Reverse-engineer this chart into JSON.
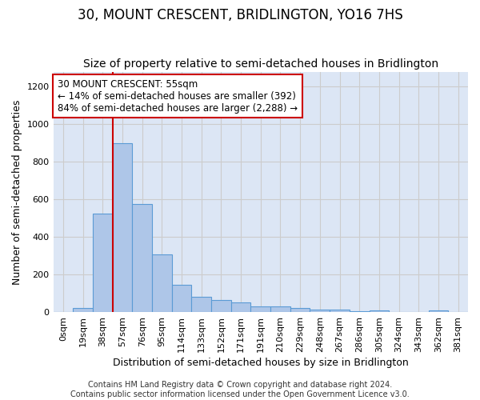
{
  "title": "30, MOUNT CRESCENT, BRIDLINGTON, YO16 7HS",
  "subtitle": "Size of property relative to semi-detached houses in Bridlington",
  "xlabel": "Distribution of semi-detached houses by size in Bridlington",
  "ylabel": "Number of semi-detached properties",
  "categories": [
    "0sqm",
    "19sqm",
    "38sqm",
    "57sqm",
    "76sqm",
    "95sqm",
    "114sqm",
    "133sqm",
    "152sqm",
    "171sqm",
    "191sqm",
    "210sqm",
    "229sqm",
    "248sqm",
    "267sqm",
    "286sqm",
    "305sqm",
    "324sqm",
    "343sqm",
    "362sqm",
    "381sqm"
  ],
  "values": [
    0,
    20,
    525,
    900,
    575,
    305,
    147,
    80,
    65,
    50,
    30,
    30,
    20,
    12,
    15,
    5,
    10,
    0,
    0,
    10,
    0
  ],
  "bar_color": "#aec6e8",
  "bar_edge_color": "#5b9bd5",
  "bar_width": 1.0,
  "property_line_x": 2.5,
  "annotation_text": "30 MOUNT CRESCENT: 55sqm\n← 14% of semi-detached houses are smaller (392)\n84% of semi-detached houses are larger (2,288) →",
  "annotation_box_color": "#ffffff",
  "annotation_box_edge_color": "#cc0000",
  "vertical_line_color": "#cc0000",
  "ylim": [
    0,
    1280
  ],
  "yticks": [
    0,
    200,
    400,
    600,
    800,
    1000,
    1200
  ],
  "grid_color": "#cccccc",
  "plot_bg_color": "#dce6f5",
  "fig_bg_color": "#ffffff",
  "footer_text": "Contains HM Land Registry data © Crown copyright and database right 2024.\nContains public sector information licensed under the Open Government Licence v3.0.",
  "title_fontsize": 12,
  "subtitle_fontsize": 10,
  "axis_label_fontsize": 9,
  "tick_fontsize": 8,
  "annotation_fontsize": 8.5,
  "footer_fontsize": 7
}
